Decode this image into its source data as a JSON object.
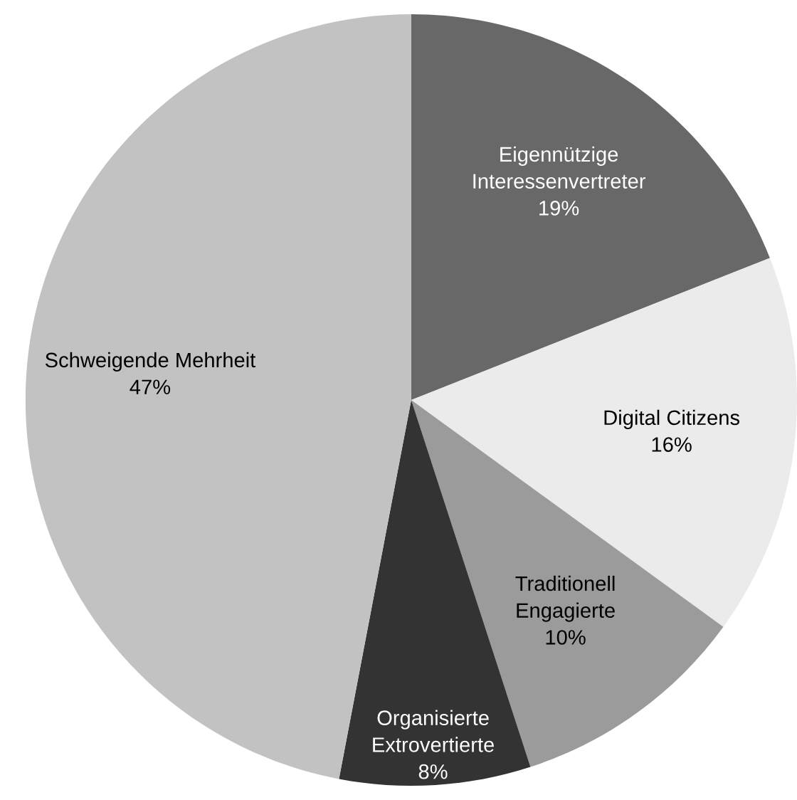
{
  "chart_data": {
    "type": "pie",
    "categories": [
      "Eigennützige Interessenvertreter",
      "Digital Citizens",
      "Traditionell Engagierte",
      "Organisierte Extrovertierte",
      "Schweigende Mehrheit"
    ],
    "values": [
      19,
      16,
      10,
      8,
      47
    ],
    "colors": [
      "#686868",
      "#ebebeb",
      "#9b9b9b",
      "#333333",
      "#c2c2c2"
    ],
    "value_labels": [
      "19%",
      "16%",
      "10%",
      "8%",
      "47%"
    ]
  }
}
